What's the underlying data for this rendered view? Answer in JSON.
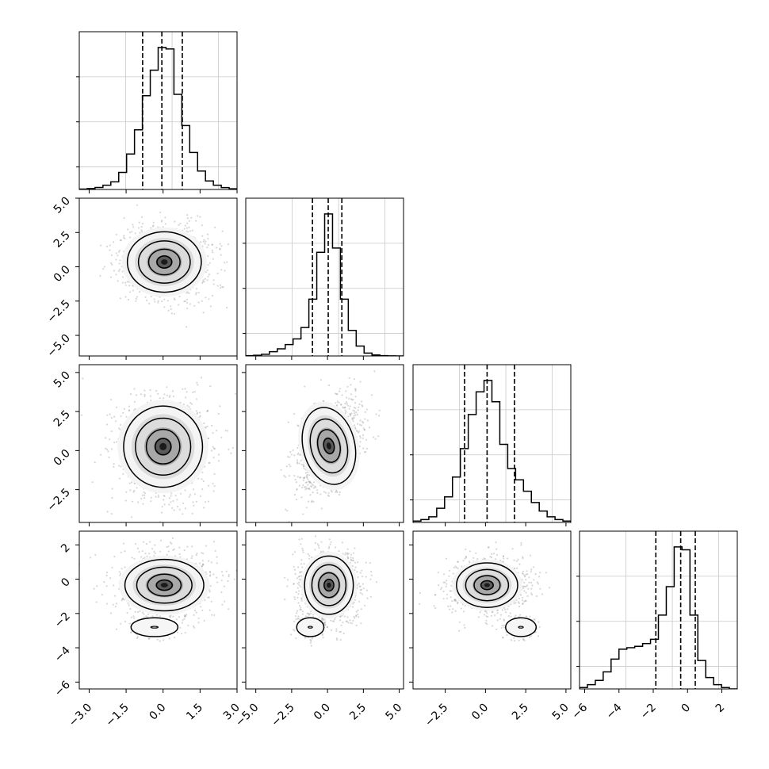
{
  "chart_data": {
    "type": "corner",
    "parameters": [
      {
        "range": [
          -3.4,
          3.0
        ],
        "y_range": [
          -6.4,
          6.2
        ],
        "ticks": [
          -3.0,
          -1.5,
          0.0,
          1.5,
          3.0
        ],
        "tick_labels": [
          "−3.0",
          "−1.5",
          "0.0",
          "1.5",
          "3.0"
        ],
        "histogram": [
          0.003,
          0.006,
          0.014,
          0.03,
          0.054,
          0.12,
          0.25,
          0.42,
          0.66,
          0.84,
          1.0,
          0.99,
          0.67,
          0.45,
          0.26,
          0.13,
          0.06,
          0.03,
          0.013,
          0.005
        ],
        "quantiles": [
          -0.83,
          -0.05,
          0.78
        ]
      },
      {
        "range": [
          -5.7,
          5.3
        ],
        "y_range": [
          -6.5,
          5.0
        ],
        "ticks": [
          -5.0,
          -2.5,
          0.0,
          2.5,
          5.0
        ],
        "tick_labels": [
          "−5.0",
          "−2.5",
          "0.0",
          "2.5",
          "5.0"
        ],
        "y_ticks": [
          -5.0,
          -2.5,
          0.0,
          2.5,
          5.0
        ],
        "y_tick_labels": [
          "−5.0",
          "−2.5",
          "0.0",
          "2.5",
          "5.0"
        ],
        "histogram": [
          0.002,
          0.005,
          0.012,
          0.03,
          0.05,
          0.08,
          0.12,
          0.2,
          0.4,
          0.73,
          1.0,
          0.76,
          0.4,
          0.18,
          0.07,
          0.02,
          0.007,
          0.002,
          0.001,
          0.0
        ],
        "quantiles": [
          -1.05,
          0.05,
          1.0
        ]
      },
      {
        "range": [
          -4.5,
          5.3
        ],
        "y_range": [
          -4.6,
          5.5
        ],
        "ticks": [
          -2.5,
          0.0,
          2.5,
          5.0
        ],
        "tick_labels": [
          "−2.5",
          "0.0",
          "2.5",
          "5.0"
        ],
        "y_ticks": [
          -2.5,
          0.0,
          2.5,
          5.0
        ],
        "y_tick_labels": [
          "−2.5",
          "0.0",
          "2.5",
          "5.0"
        ],
        "histogram": [
          0.01,
          0.02,
          0.04,
          0.1,
          0.18,
          0.32,
          0.52,
          0.76,
          0.92,
          1.0,
          0.85,
          0.55,
          0.38,
          0.3,
          0.22,
          0.14,
          0.08,
          0.04,
          0.02,
          0.01
        ],
        "quantiles": [
          -1.3,
          0.1,
          1.8
        ]
      },
      {
        "range": [
          -6.3,
          2.9
        ],
        "y_range": [
          -6.4,
          2.8
        ],
        "ticks": [
          -6,
          -4,
          -2,
          0,
          2
        ],
        "tick_labels": [
          "−6",
          "−4",
          "−2",
          "0",
          "2"
        ],
        "y_ticks": [
          -6,
          -4,
          -2,
          0,
          2
        ],
        "y_tick_labels": [
          "−6",
          "−4",
          "−2",
          "0",
          "2"
        ],
        "histogram": [
          0.01,
          0.03,
          0.06,
          0.12,
          0.21,
          0.28,
          0.29,
          0.3,
          0.32,
          0.35,
          0.52,
          0.72,
          1.0,
          0.98,
          0.52,
          0.2,
          0.08,
          0.03,
          0.01,
          0.0
        ],
        "quantiles": [
          -1.85,
          -0.4,
          0.45
        ]
      }
    ],
    "pairs": [
      {
        "x": 0,
        "y": 1,
        "center": [
          0.05,
          0.35
        ],
        "sigma": [
          0.75,
          1.1
        ],
        "corr": 0.0
      },
      {
        "x": 0,
        "y": 2,
        "center": [
          0.0,
          0.25
        ],
        "sigma": [
          0.8,
          1.3
        ],
        "corr": 0.0
      },
      {
        "x": 1,
        "y": 2,
        "center": [
          0.1,
          0.3
        ],
        "sigma": [
          0.9,
          1.25
        ],
        "corr": -0.45
      },
      {
        "x": 0,
        "y": 3,
        "center": [
          0.05,
          -0.35
        ],
        "sigma": [
          0.8,
          0.75
        ],
        "corr": 0.0,
        "tail": [
          -0.35,
          -2.8
        ]
      },
      {
        "x": 1,
        "y": 3,
        "center": [
          0.1,
          -0.35
        ],
        "sigma": [
          0.85,
          0.85
        ],
        "corr": 0.0,
        "tail": [
          -1.2,
          -2.8
        ]
      },
      {
        "x": 2,
        "y": 3,
        "center": [
          0.1,
          -0.35
        ],
        "sigma": [
          0.95,
          0.65
        ],
        "corr": 0.0,
        "tail": [
          2.2,
          -2.8
        ]
      }
    ],
    "grid": true,
    "quantile_levels": [
      0.16,
      0.5,
      0.84
    ]
  }
}
